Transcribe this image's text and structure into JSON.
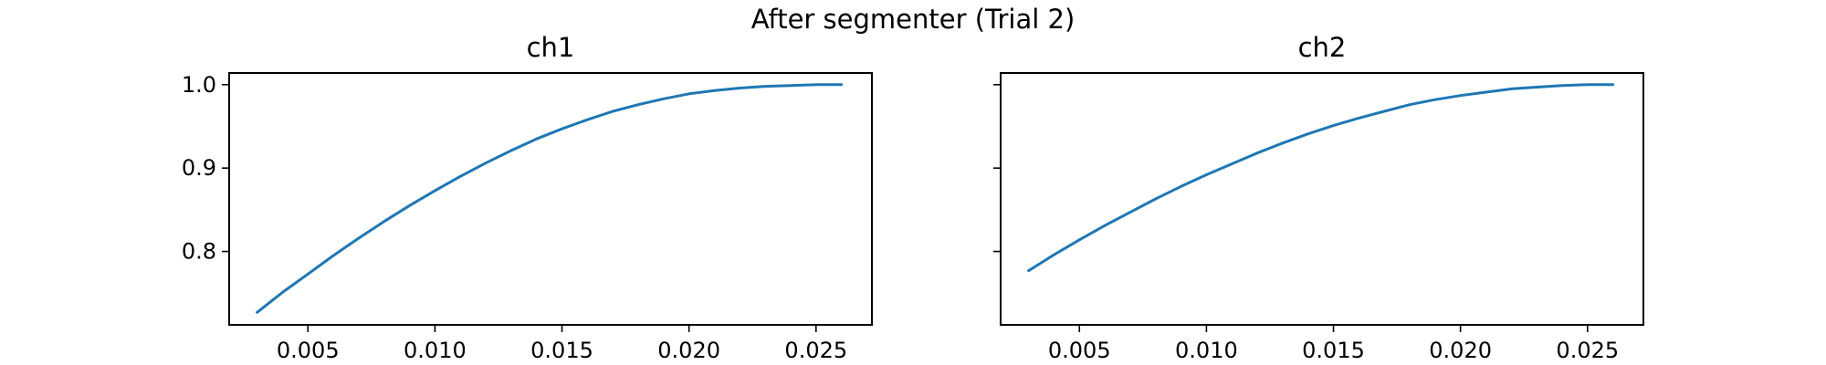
{
  "figure": {
    "title": "After segmenter (Trial 2)"
  },
  "chart_data": [
    {
      "type": "line",
      "title": "ch1",
      "xlabel": "",
      "ylabel": "",
      "xlim": [
        0.0019,
        0.0272
      ],
      "ylim": [
        0.712,
        1.014
      ],
      "xticks": [
        0.005,
        0.01,
        0.015,
        0.02,
        0.025
      ],
      "xtick_labels": [
        "0.005",
        "0.010",
        "0.015",
        "0.020",
        "0.025"
      ],
      "yticks": [
        0.8,
        0.9,
        1.0
      ],
      "ytick_labels": [
        "0.8",
        "0.9",
        "1.0"
      ],
      "grid": false,
      "color": "#1f77b4",
      "series": [
        {
          "x": [
            0.003,
            0.004,
            0.005,
            0.006,
            0.007,
            0.008,
            0.009,
            0.01,
            0.011,
            0.012,
            0.013,
            0.014,
            0.015,
            0.016,
            0.017,
            0.018,
            0.019,
            0.02,
            0.021,
            0.022,
            0.023,
            0.024,
            0.025,
            0.026
          ],
          "values": [
            0.727,
            0.751,
            0.773,
            0.795,
            0.816,
            0.836,
            0.855,
            0.873,
            0.89,
            0.906,
            0.921,
            0.935,
            0.947,
            0.958,
            0.968,
            0.976,
            0.983,
            0.989,
            0.993,
            0.996,
            0.998,
            0.999,
            1.0,
            1.0
          ]
        }
      ]
    },
    {
      "type": "line",
      "title": "ch2",
      "xlabel": "",
      "ylabel": "",
      "xlim": [
        0.0019,
        0.0272
      ],
      "ylim": [
        0.712,
        1.014
      ],
      "xticks": [
        0.005,
        0.01,
        0.015,
        0.02,
        0.025
      ],
      "xtick_labels": [
        "0.005",
        "0.010",
        "0.015",
        "0.020",
        "0.025"
      ],
      "yticks": [
        0.8,
        0.9,
        1.0
      ],
      "ytick_labels": [],
      "grid": false,
      "color": "#1f77b4",
      "series": [
        {
          "x": [
            0.003,
            0.004,
            0.005,
            0.006,
            0.007,
            0.008,
            0.009,
            0.01,
            0.011,
            0.012,
            0.013,
            0.014,
            0.015,
            0.016,
            0.017,
            0.018,
            0.019,
            0.02,
            0.021,
            0.022,
            0.023,
            0.024,
            0.025,
            0.026
          ],
          "values": [
            0.777,
            0.796,
            0.814,
            0.831,
            0.847,
            0.863,
            0.878,
            0.892,
            0.905,
            0.918,
            0.93,
            0.941,
            0.951,
            0.96,
            0.968,
            0.976,
            0.982,
            0.987,
            0.991,
            0.995,
            0.997,
            0.999,
            1.0,
            1.0
          ]
        }
      ]
    }
  ]
}
